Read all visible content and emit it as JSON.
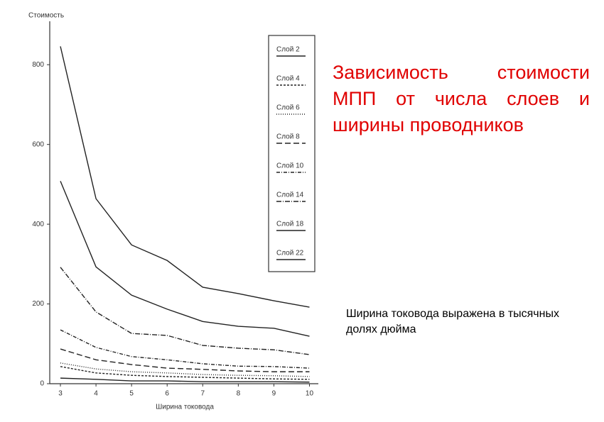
{
  "chart_data": {
    "type": "line",
    "title": "Зависимость стоимости МПП от числа слоев и ширины проводников",
    "annotations": [
      "Ширина токовода выражена в тысячных  долях дюйма"
    ],
    "y_label": "Стоимость",
    "x_label": "Ширина токовода",
    "x": [
      3,
      4,
      5,
      6,
      7,
      8,
      9,
      10
    ],
    "xlim": [
      2.7,
      10.25
    ],
    "xticks": [
      3,
      4,
      5,
      6,
      7,
      8,
      9,
      10
    ],
    "ylim": [
      0,
      900
    ],
    "yticks": [
      0,
      200,
      400,
      600,
      800
    ],
    "legend": "right",
    "series": [
      {
        "name": "Слой 2",
        "color": "#222222",
        "dash": "none",
        "values": [
          14,
          11,
          7,
          7,
          5,
          5,
          5,
          4
        ]
      },
      {
        "name": "Слой 4",
        "color": "#222222",
        "dash": "3 2",
        "values": [
          43,
          27,
          21,
          18,
          16,
          14,
          12,
          11
        ]
      },
      {
        "name": "Слой 6",
        "color": "#222222",
        "dash": "1 2",
        "values": [
          52,
          37,
          30,
          27,
          23,
          21,
          20,
          18
        ]
      },
      {
        "name": "Слой 8",
        "color": "#222222",
        "dash": "8 4",
        "values": [
          87,
          60,
          48,
          39,
          36,
          32,
          30,
          30
        ]
      },
      {
        "name": "Слой 10",
        "color": "#222222",
        "dash": "5 2 1 2",
        "values": [
          135,
          91,
          68,
          60,
          50,
          44,
          43,
          39
        ]
      },
      {
        "name": "Слой 14",
        "color": "#222222",
        "dash": "7 2 1 2",
        "values": [
          292,
          180,
          126,
          121,
          96,
          89,
          85,
          73
        ]
      },
      {
        "name": "Слой 18",
        "color": "#222222",
        "dash": "none",
        "values": [
          508,
          293,
          222,
          187,
          156,
          144,
          139,
          119
        ]
      },
      {
        "name": "Слой 22",
        "color": "#222222",
        "dash": "none",
        "values": [
          846,
          464,
          348,
          309,
          242,
          226,
          208,
          192
        ]
      }
    ]
  }
}
